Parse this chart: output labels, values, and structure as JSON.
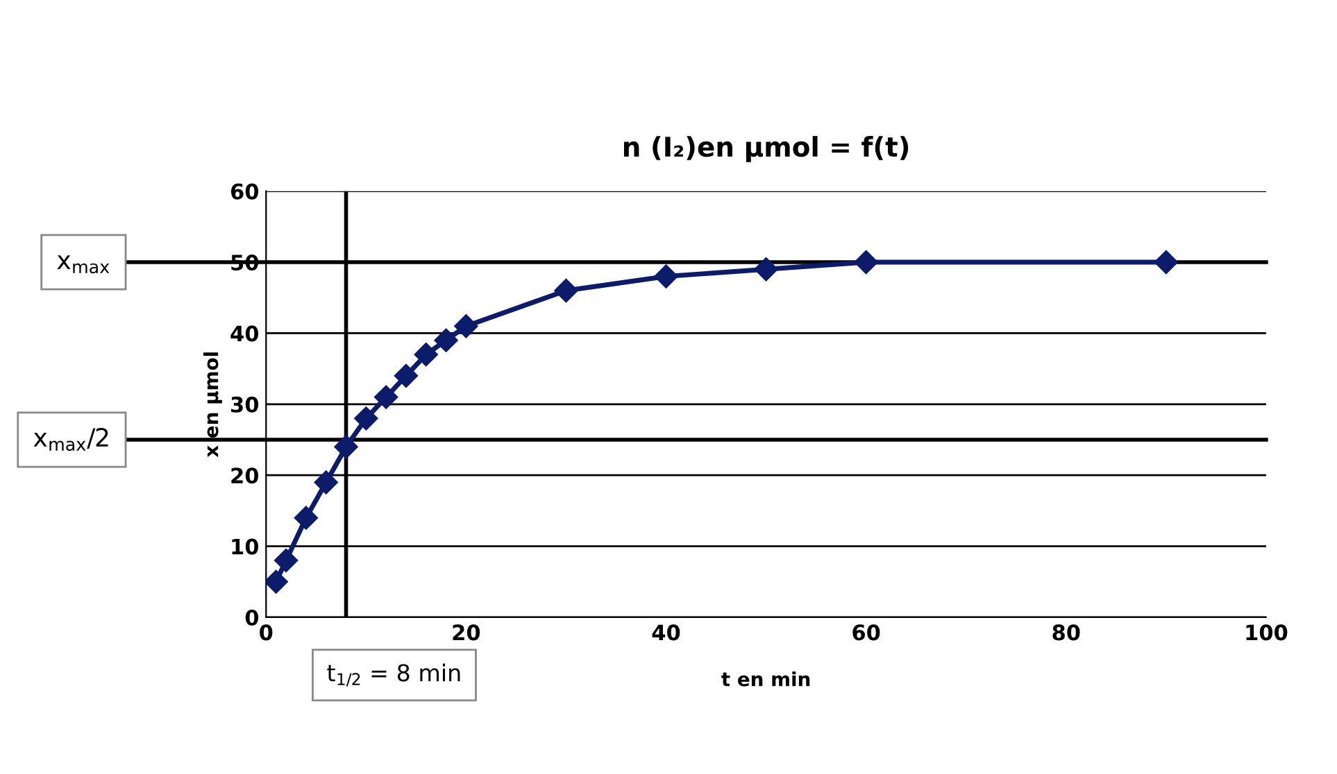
{
  "chart_data": {
    "type": "line",
    "title": "n (I₂)en µmol = f(t)",
    "xlabel": "t en min",
    "ylabel": "x en µmol",
    "x": [
      1,
      2,
      4,
      6,
      8,
      10,
      12,
      14,
      16,
      18,
      20,
      30,
      40,
      50,
      60,
      90
    ],
    "series": [
      {
        "color": "#0d1b6b",
        "values": [
          5,
          8,
          14,
          19,
          24,
          28,
          31,
          34,
          37,
          39,
          41,
          46,
          48,
          49,
          50,
          50
        ]
      }
    ],
    "line_style": "solid",
    "marker": "diamond",
    "xlim": [
      0,
      100
    ],
    "xticks": [
      0,
      20,
      40,
      60,
      80,
      100
    ],
    "ylim": [
      0,
      60
    ],
    "yticks": [
      0,
      10,
      20,
      30,
      40,
      50,
      60
    ],
    "grid": "y",
    "legend": false,
    "ref_lines": [
      {
        "axis": "y",
        "value": 50,
        "label": "x$_{max}$"
      },
      {
        "axis": "y",
        "value": 25,
        "label": "x$_{max}$/2"
      },
      {
        "axis": "x",
        "value": 8,
        "label": "t$_{1/2}$ = 8 min"
      }
    ]
  }
}
